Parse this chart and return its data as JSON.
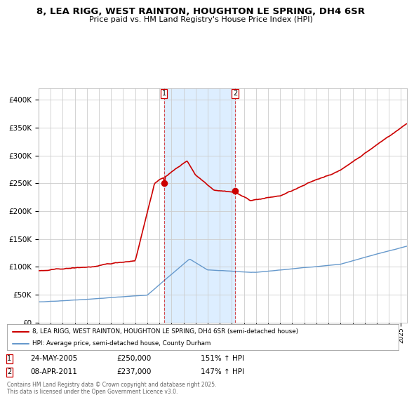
{
  "title1": "8, LEA RIGG, WEST RAINTON, HOUGHTON LE SPRING, DH4 6SR",
  "title2": "Price paid vs. HM Land Registry's House Price Index (HPI)",
  "legend_line1": "8, LEA RIGG, WEST RAINTON, HOUGHTON LE SPRING, DH4 6SR (semi-detached house)",
  "legend_line2": "HPI: Average price, semi-detached house, County Durham",
  "event1_date": "24-MAY-2005",
  "event1_price": 250000,
  "event1_hpi": "151% ↑ HPI",
  "event2_date": "08-APR-2011",
  "event2_price": 237000,
  "event2_hpi": "147% ↑ HPI",
  "footer": "Contains HM Land Registry data © Crown copyright and database right 2025.\nThis data is licensed under the Open Government Licence v3.0.",
  "red_color": "#cc0000",
  "blue_color": "#6699cc",
  "bg_color": "#ffffff",
  "grid_color": "#cccccc",
  "shading_color": "#ddeeff",
  "ylim": [
    0,
    420000
  ],
  "yticks": [
    0,
    50000,
    100000,
    150000,
    200000,
    250000,
    300000,
    350000,
    400000
  ],
  "event1_t": 2005.38,
  "event2_t": 2011.27,
  "xlim_left": 1995.0,
  "xlim_right": 2025.5
}
